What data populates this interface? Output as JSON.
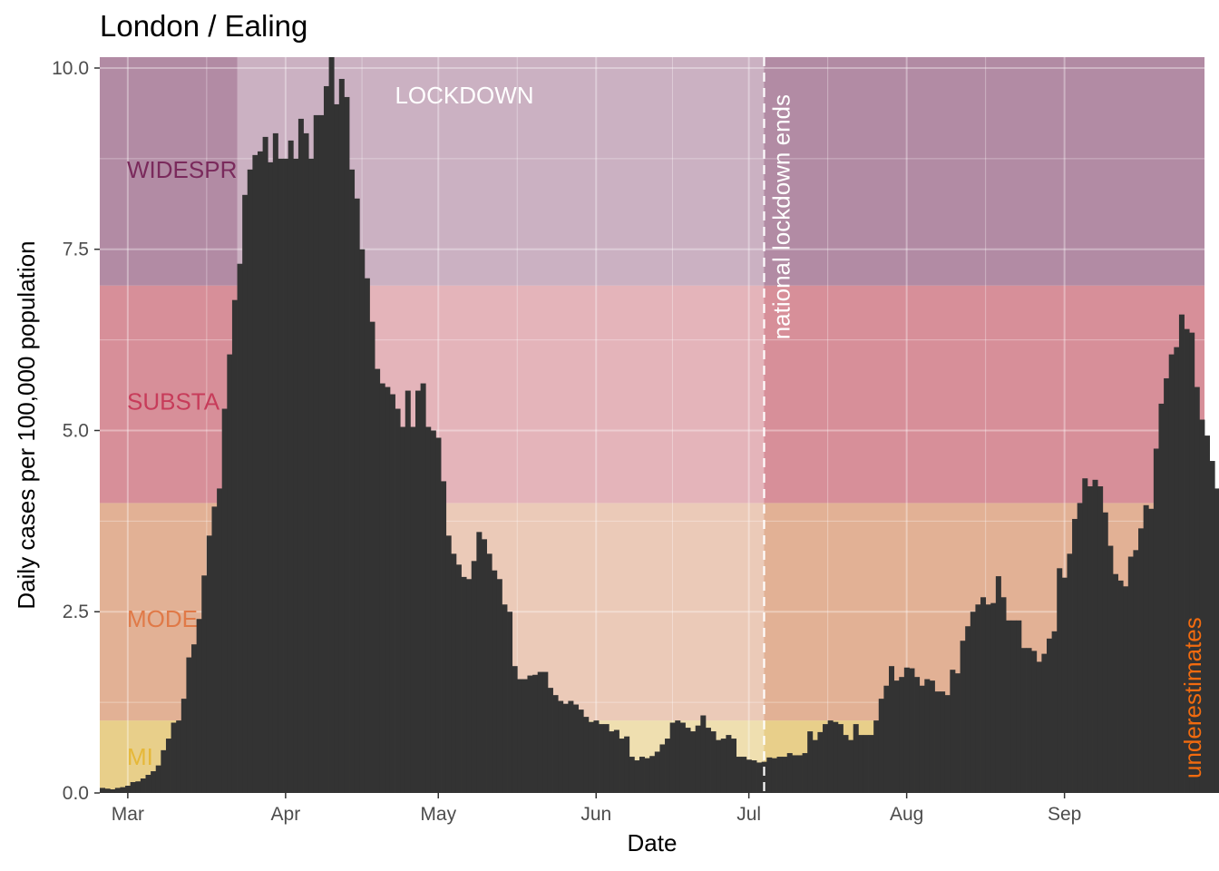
{
  "chart_data": {
    "type": "bar",
    "title": "London / Ealing",
    "xlabel": "Date",
    "ylabel": "Daily cases per 100,000 population",
    "ylim": [
      0,
      10.15
    ],
    "y_ticks": [
      0,
      2.5,
      5,
      7.5,
      10
    ],
    "y_tick_labels": [
      "0.0",
      "2.5",
      "5.0",
      "7.5",
      "10.0"
    ],
    "x_start": "2020-02-25",
    "x_end": "2020-09-28",
    "x_ticks": [
      {
        "date": "2020-03-01",
        "label": "Mar"
      },
      {
        "date": "2020-04-01",
        "label": "Apr"
      },
      {
        "date": "2020-05-01",
        "label": "May"
      },
      {
        "date": "2020-06-01",
        "label": "Jun"
      },
      {
        "date": "2020-07-01",
        "label": "Jul"
      },
      {
        "date": "2020-08-01",
        "label": "Aug"
      },
      {
        "date": "2020-09-01",
        "label": "Sep"
      }
    ],
    "grid": true,
    "bands": [
      {
        "label": "MILD",
        "from": 0,
        "to": 1,
        "color": "#e8cf8a",
        "label_color": "#e6b838",
        "shown_label": "MI"
      },
      {
        "label": "MODERATE",
        "from": 1,
        "to": 4,
        "color": "#e2b195",
        "label_color": "#e07a48",
        "shown_label": "MODE"
      },
      {
        "label": "SUBSTANTIAL",
        "from": 4,
        "to": 7,
        "color": "#d78f99",
        "label_color": "#c73c5a",
        "shown_label": "SUBSTA"
      },
      {
        "label": "WIDESPREAD",
        "from": 7,
        "to": 10.15,
        "color": "#b28ba4",
        "label_color": "#7a2a5c",
        "shown_label": "WIDESPR"
      }
    ],
    "lockdown": {
      "label": "LOCKDOWN",
      "start": "2020-03-23",
      "end": "2020-07-04"
    },
    "lockdown_end": {
      "date": "2020-07-04",
      "label": "national lockdown ends"
    },
    "note": {
      "label": "underestimates",
      "color": "#f26b0f"
    },
    "bar_color": "#333333",
    "series": [
      {
        "values": [
          0.07,
          0.06,
          0.05,
          0.07,
          0.08,
          0.1,
          0.15,
          0.16,
          0.2,
          0.25,
          0.3,
          0.38,
          0.59,
          0.75,
          0.97,
          1.0,
          1.3,
          1.87,
          2.05,
          2.4,
          3.0,
          3.55,
          3.95,
          4.2,
          5.3,
          6.05,
          6.8,
          7.3,
          8.25,
          8.6,
          8.8,
          8.85,
          9.05,
          8.7,
          9.1,
          8.75,
          8.75,
          9.0,
          8.75,
          9.3,
          9.1,
          8.75,
          9.35,
          9.35,
          9.75,
          10.15,
          9.5,
          9.85,
          9.6,
          8.6,
          8.2,
          7.5,
          7.1,
          6.5,
          5.85,
          5.65,
          5.6,
          5.5,
          5.3,
          5.05,
          5.55,
          5.05,
          5.55,
          5.65,
          5.05,
          5.0,
          4.9,
          4.3,
          3.55,
          3.3,
          3.15,
          2.98,
          2.95,
          3.2,
          3.6,
          3.5,
          3.3,
          3.07,
          2.95,
          2.6,
          2.5,
          1.75,
          1.57,
          1.57,
          1.62,
          1.63,
          1.67,
          1.67,
          1.45,
          1.35,
          1.27,
          1.23,
          1.27,
          1.22,
          1.15,
          1.05,
          0.98,
          1.0,
          0.95,
          0.95,
          0.85,
          0.87,
          0.75,
          0.78,
          0.5,
          0.45,
          0.5,
          0.48,
          0.51,
          0.57,
          0.67,
          0.75,
          0.97,
          1.0,
          0.97,
          0.9,
          0.85,
          0.93,
          1.07,
          0.9,
          0.85,
          0.73,
          0.75,
          0.8,
          0.75,
          0.5,
          0.5,
          0.46,
          0.45,
          0.42,
          0.43,
          0.49,
          0.48,
          0.5,
          0.5,
          0.55,
          0.52,
          0.52,
          0.55,
          0.85,
          0.73,
          0.84,
          0.95,
          1.0,
          0.98,
          0.95,
          0.8,
          0.73,
          0.95,
          0.8,
          0.8,
          0.8,
          1.0,
          1.3,
          1.48,
          1.75,
          1.55,
          1.6,
          1.73,
          1.72,
          1.6,
          1.48,
          1.57,
          1.55,
          1.4,
          1.4,
          1.35,
          1.7,
          1.65,
          2.1,
          2.3,
          2.5,
          2.6,
          2.7,
          2.6,
          2.62,
          2.99,
          2.7,
          2.38,
          2.38,
          2.38,
          2.0,
          2.0,
          1.96,
          1.81,
          1.92,
          2.13,
          2.23,
          3.1,
          2.97,
          3.3,
          3.78,
          4.0,
          4.34,
          4.23,
          4.32,
          4.23,
          3.87,
          3.41,
          3.02,
          2.93,
          2.85,
          3.26,
          3.35,
          3.65,
          3.97,
          3.92,
          4.75,
          5.37,
          5.72,
          6.05,
          6.15,
          6.6,
          6.4,
          6.35,
          5.6,
          5.15,
          4.93,
          4.58,
          4.2
        ]
      }
    ]
  }
}
